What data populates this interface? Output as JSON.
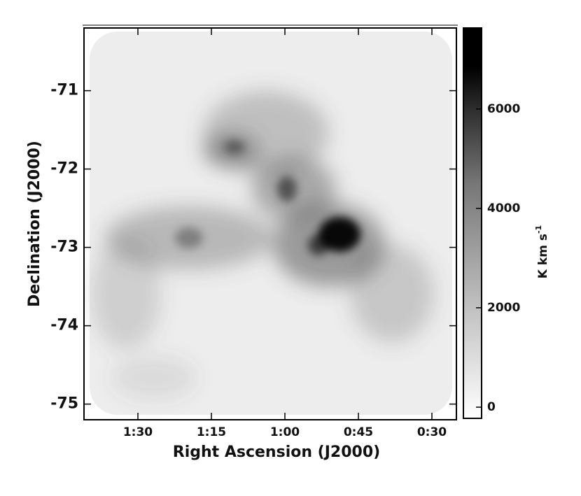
{
  "chart_data": {
    "type": "image",
    "xlabel": "Right Ascension (J2000)",
    "ylabel": "Declination (J2000)",
    "xlim": [
      101,
      25
    ],
    "xticks": [
      {
        "value": 90,
        "label": "1:30"
      },
      {
        "value": 75,
        "label": "1:15"
      },
      {
        "value": 60,
        "label": "1:00"
      },
      {
        "value": 45,
        "label": "0:45"
      },
      {
        "value": 30,
        "label": "0:30"
      }
    ],
    "ylim": [
      -75.2,
      -70.2
    ],
    "yticks": [
      -71,
      -72,
      -73,
      -74,
      -75
    ],
    "colorbar": {
      "label": "K km s",
      "label_exponent": "-1",
      "lim": [
        -225,
        7630
      ],
      "ticks": [
        0,
        2000,
        4000,
        6000
      ]
    }
  }
}
